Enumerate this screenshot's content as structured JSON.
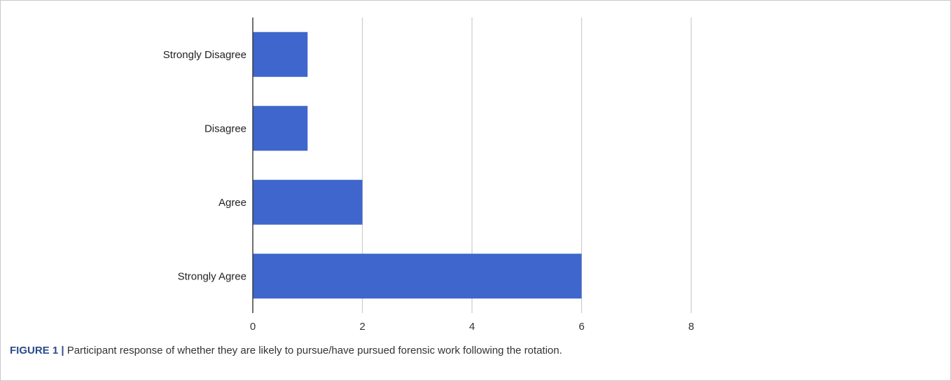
{
  "chart_data": {
    "type": "bar",
    "orientation": "horizontal",
    "categories": [
      "Strongly Disagree",
      "Disagree",
      "Agree",
      "Strongly Agree"
    ],
    "values": [
      1,
      1,
      2,
      6
    ],
    "xlim": [
      0,
      8
    ],
    "x_ticks": [
      "0",
      "2",
      "4",
      "6",
      "8"
    ],
    "grid": "vertical",
    "bar_color": "#3e66cc",
    "title": "",
    "xlabel": "",
    "ylabel": ""
  },
  "caption": {
    "label": "FIGURE 1 |",
    "text": " Participant response of whether they are likely to pursue/have pursued forensic work following the rotation."
  }
}
